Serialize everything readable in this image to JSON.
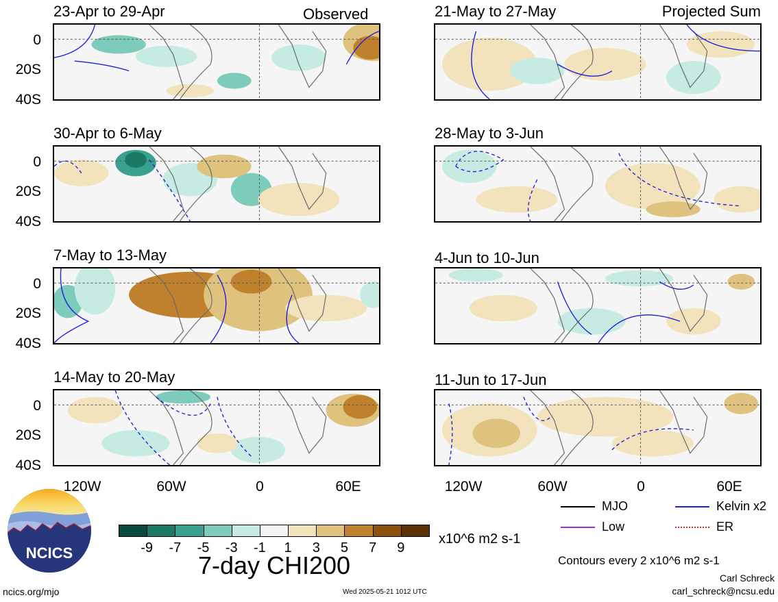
{
  "headers": {
    "observed": "Observed",
    "projected": "Projected Sum"
  },
  "panels": [
    {
      "title": "23-Apr to 29-Apr"
    },
    {
      "title": "30-Apr to 6-May"
    },
    {
      "title": "7-May to 13-May"
    },
    {
      "title": "14-May to 20-May"
    },
    {
      "title": "21-May to 27-May"
    },
    {
      "title": "28-May to 3-Jun"
    },
    {
      "title": "4-Jun to 10-Jun"
    },
    {
      "title": "11-Jun to 17-Jun"
    }
  ],
  "lat_labels": [
    "0",
    "20S",
    "40S"
  ],
  "lon_labels": [
    "120W",
    "60W",
    "0",
    "60E"
  ],
  "colorbar": {
    "colors": [
      "#0a4a3c",
      "#1a7a66",
      "#3aa090",
      "#7ccbbb",
      "#c5ebe2",
      "#f5f5f5",
      "#f3e3bd",
      "#dfc27d",
      "#bf812d",
      "#8c510a",
      "#5a3306"
    ],
    "labels": [
      "-9",
      "-7",
      "-5",
      "-3",
      "-1",
      "1",
      "3",
      "5",
      "7",
      "9"
    ],
    "units": "x10^6 m2 s-1",
    "title": "7-day CHI200"
  },
  "legend": {
    "mjo": "MJO",
    "kelvin": "Kelvin x2",
    "low": "Low",
    "er": "ER",
    "contours": "Contours every 2 x10^6 m2 s-1"
  },
  "footer": {
    "site": "ncics.org/mjo",
    "timestamp": "Wed 2025-05-21 1012 UTC",
    "author": "Carl Schreck",
    "email": "carl_schreck@ncsu.edu",
    "logo_text": "NCICS"
  }
}
